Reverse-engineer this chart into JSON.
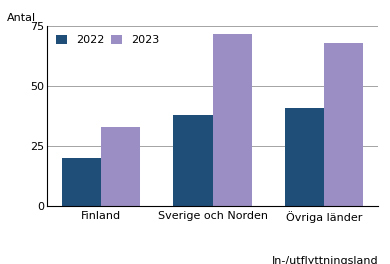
{
  "categories": [
    "Finland",
    "Sverige och Norden",
    "Övriga länder"
  ],
  "values_2022": [
    20,
    38,
    41
  ],
  "values_2023": [
    33,
    72,
    68
  ],
  "color_2022": "#1f4e79",
  "color_2023": "#9b8ec4",
  "ylabel": "Antal",
  "xlabel": "In-/utflyttningsland",
  "ylim": [
    0,
    75
  ],
  "yticks": [
    0,
    25,
    50,
    75
  ],
  "legend_labels": [
    "2022",
    "2023"
  ],
  "bar_width": 0.35,
  "figsize": [
    3.9,
    2.64
  ],
  "dpi": 100
}
